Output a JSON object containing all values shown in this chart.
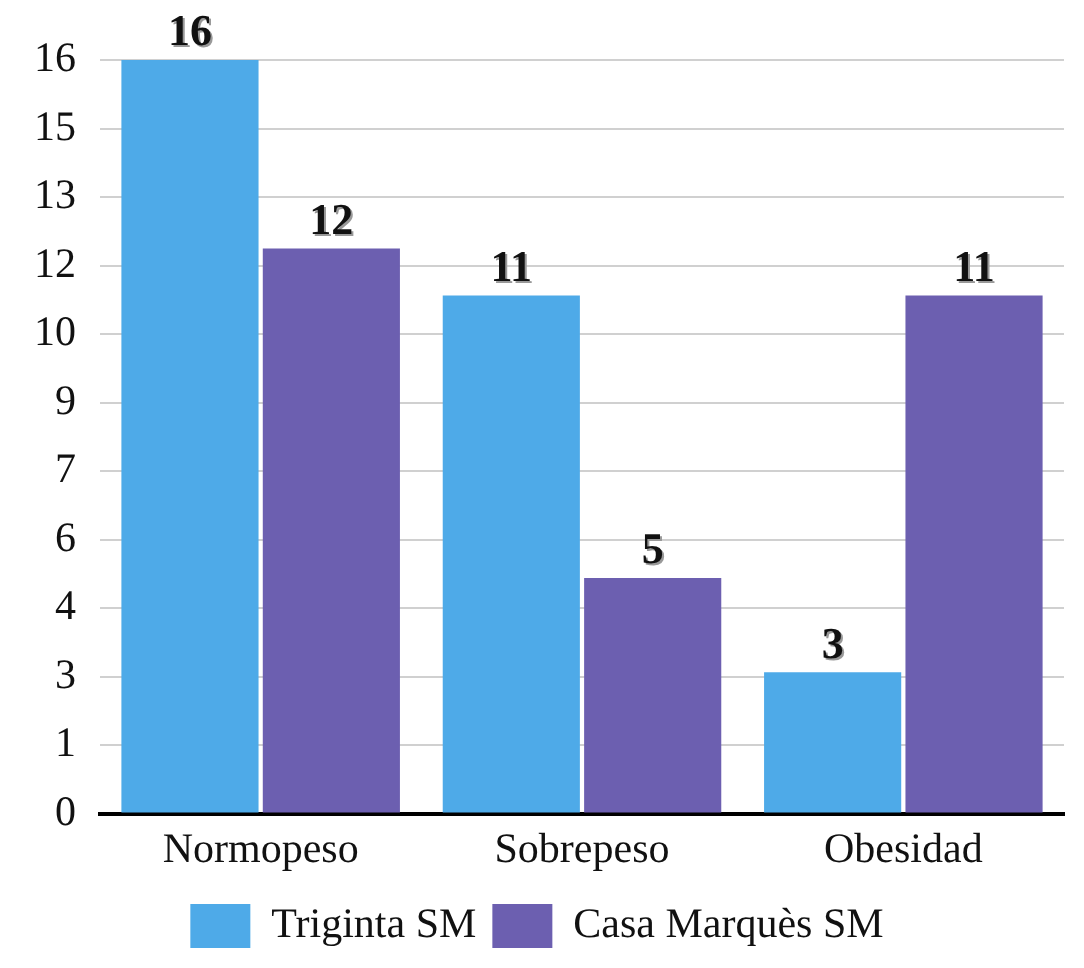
{
  "chart_data": {
    "type": "bar",
    "categories": [
      "Normopeso",
      "Sobrepeso",
      "Obesidad"
    ],
    "series": [
      {
        "name": "Triginta SM",
        "color": "#4eaae8",
        "values": [
          16,
          11,
          3
        ]
      },
      {
        "name": "Casa Marquès SM",
        "color": "#6c5fb0",
        "values": [
          12,
          5,
          11
        ]
      }
    ],
    "ylim": [
      0,
      16
    ],
    "yticks": [
      0,
      {
        "value": 1.4545,
        "label": "1"
      },
      {
        "value": 2.9091,
        "label": "3"
      },
      {
        "value": 4.3636,
        "label": "4"
      },
      {
        "value": 5.8182,
        "label": "6"
      },
      {
        "value": 7.2727,
        "label": "7"
      },
      {
        "value": 8.7273,
        "label": "9"
      },
      {
        "value": 10.1818,
        "label": "10"
      },
      {
        "value": 11.6364,
        "label": "12"
      },
      {
        "value": 13.0909,
        "label": "13"
      },
      {
        "value": 14.5455,
        "label": "15"
      },
      16
    ],
    "grid": "y",
    "legend": "bottom",
    "data_labels": true
  }
}
